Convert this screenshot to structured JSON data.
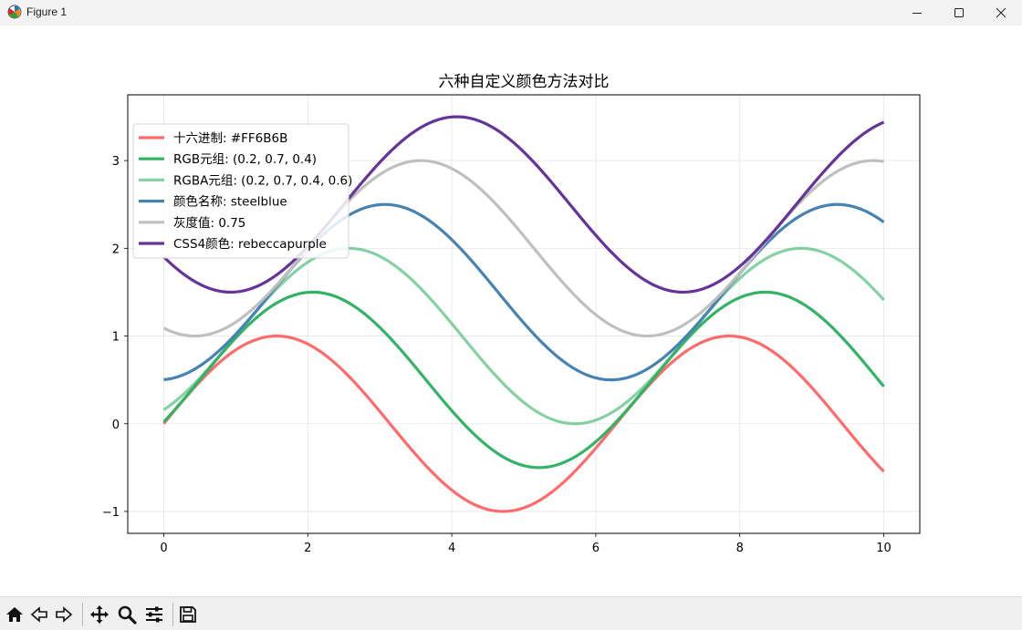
{
  "window": {
    "title": "Figure 1",
    "icons": {
      "app": "matplotlib-icon",
      "minimize": "minimize-icon",
      "maximize": "maximize-icon",
      "close": "close-icon"
    }
  },
  "toolbar": {
    "buttons": [
      {
        "name": "home-button",
        "icon": "home-icon"
      },
      {
        "name": "back-button",
        "icon": "arrow-left-icon"
      },
      {
        "name": "forward-button",
        "icon": "arrow-right-icon"
      },
      {
        "name": "pan-button",
        "icon": "move-icon"
      },
      {
        "name": "zoom-button",
        "icon": "magnifier-icon"
      },
      {
        "name": "configure-subplots-button",
        "icon": "sliders-icon"
      },
      {
        "name": "save-button",
        "icon": "floppy-disk-icon"
      }
    ]
  },
  "chart_data": {
    "type": "line",
    "title": "六种自定义颜色方法对比",
    "xlabel": "",
    "ylabel": "",
    "xlim": [
      -0.5,
      10.5
    ],
    "ylim": [
      -1.25,
      3.75
    ],
    "xticks": [
      0,
      2,
      4,
      6,
      8,
      10
    ],
    "yticks": [
      -1,
      0,
      1,
      2,
      3
    ],
    "grid": true,
    "legend_position": "upper-left",
    "x_range": [
      0,
      10
    ],
    "series": [
      {
        "name": "十六进制: #FF6B6B",
        "color": "#FF6B6B",
        "alpha": 1.0,
        "function": "sin(x)"
      },
      {
        "name": "RGB元组: (0.2, 0.7, 0.4)",
        "color": "#33b366",
        "alpha": 1.0,
        "function": "sin(x - 0.5) + 0.5"
      },
      {
        "name": "RGBA元组: (0.2, 0.7, 0.4, 0.6)",
        "color": "#33b366",
        "alpha": 0.6,
        "function": "sin(x - 1.0) + 1.0"
      },
      {
        "name": "颜色名称: steelblue",
        "color": "#4682b4",
        "alpha": 1.0,
        "function": "sin(x - 1.5) + 1.5"
      },
      {
        "name": "灰度值: 0.75",
        "color": "#bfbfbf",
        "alpha": 1.0,
        "function": "sin(x - 2.0) + 2.0"
      },
      {
        "name": "CSS4颜色: rebeccapurple",
        "color": "#663399",
        "alpha": 1.0,
        "function": "sin(x - 2.5) + 2.5"
      }
    ]
  }
}
